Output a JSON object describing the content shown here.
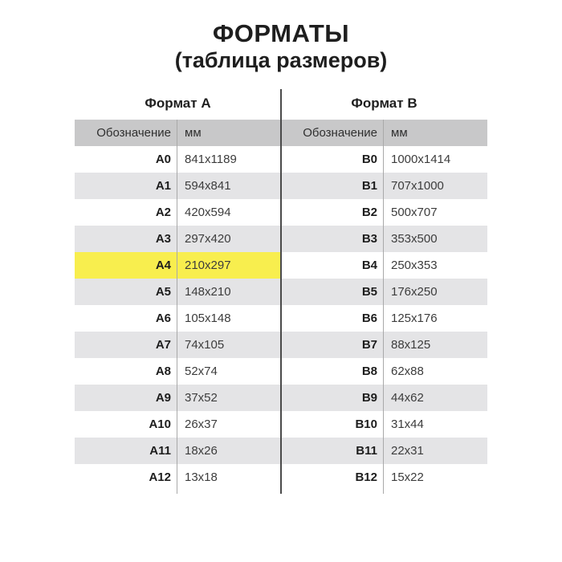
{
  "title": "ФОРМАТЫ",
  "subtitle": "(таблица размеров)",
  "colors": {
    "highlight_yellow": "#f8ee4e",
    "header_band_gray": "#c8c8c9",
    "row_alt_gray": "#e4e4e6",
    "divider_dark": "#4a4a4a",
    "text_black": "#1e1e1e"
  },
  "highlighted_row": "A4",
  "tables": [
    {
      "heading": "Формат А",
      "columns": [
        "Обозначение",
        "мм"
      ],
      "rows": [
        {
          "label": "A0",
          "size": "841x1189",
          "highlight": false
        },
        {
          "label": "A1",
          "size": "594x841",
          "highlight": false
        },
        {
          "label": "A2",
          "size": "420x594",
          "highlight": false
        },
        {
          "label": "A3",
          "size": "297x420",
          "highlight": false
        },
        {
          "label": "A4",
          "size": "210x297",
          "highlight": true
        },
        {
          "label": "A5",
          "size": "148x210",
          "highlight": false
        },
        {
          "label": "A6",
          "size": "105x148",
          "highlight": false
        },
        {
          "label": "A7",
          "size": "74x105",
          "highlight": false
        },
        {
          "label": "A8",
          "size": "52x74",
          "highlight": false
        },
        {
          "label": "A9",
          "size": "37x52",
          "highlight": false
        },
        {
          "label": "A10",
          "size": "26x37",
          "highlight": false
        },
        {
          "label": "A11",
          "size": "18x26",
          "highlight": false
        },
        {
          "label": "A12",
          "size": "13x18",
          "highlight": false
        }
      ]
    },
    {
      "heading": "Формат В",
      "columns": [
        "Обозначение",
        "мм"
      ],
      "rows": [
        {
          "label": "B0",
          "size": "1000x1414",
          "highlight": false
        },
        {
          "label": "B1",
          "size": "707x1000",
          "highlight": false
        },
        {
          "label": "B2",
          "size": "500x707",
          "highlight": false
        },
        {
          "label": "B3",
          "size": "353x500",
          "highlight": false
        },
        {
          "label": "B4",
          "size": "250x353",
          "highlight": false
        },
        {
          "label": "B5",
          "size": "176x250",
          "highlight": false
        },
        {
          "label": "B6",
          "size": "125x176",
          "highlight": false
        },
        {
          "label": "B7",
          "size": "88x125",
          "highlight": false
        },
        {
          "label": "B8",
          "size": "62x88",
          "highlight": false
        },
        {
          "label": "B9",
          "size": "44x62",
          "highlight": false
        },
        {
          "label": "B10",
          "size": "31x44",
          "highlight": false
        },
        {
          "label": "B11",
          "size": "22x31",
          "highlight": false
        },
        {
          "label": "B12",
          "size": "15x22",
          "highlight": false
        }
      ]
    }
  ],
  "chart_data": [
    {
      "type": "table",
      "title": "Формат А",
      "columns": [
        "Обозначение",
        "мм"
      ],
      "rows": [
        [
          "A0",
          "841x1189"
        ],
        [
          "A1",
          "594x841"
        ],
        [
          "A2",
          "420x594"
        ],
        [
          "A3",
          "297x420"
        ],
        [
          "A4",
          "210x297"
        ],
        [
          "A5",
          "148x210"
        ],
        [
          "A6",
          "105x148"
        ],
        [
          "A7",
          "74x105"
        ],
        [
          "A8",
          "52x74"
        ],
        [
          "A9",
          "37x52"
        ],
        [
          "A10",
          "26x37"
        ],
        [
          "A11",
          "18x26"
        ],
        [
          "A12",
          "13x18"
        ]
      ],
      "highlighted_row": "A4"
    },
    {
      "type": "table",
      "title": "Формат В",
      "columns": [
        "Обозначение",
        "мм"
      ],
      "rows": [
        [
          "B0",
          "1000x1414"
        ],
        [
          "B1",
          "707x1000"
        ],
        [
          "B2",
          "500x707"
        ],
        [
          "B3",
          "353x500"
        ],
        [
          "B4",
          "250x353"
        ],
        [
          "B5",
          "176x250"
        ],
        [
          "B6",
          "125x176"
        ],
        [
          "B7",
          "88x125"
        ],
        [
          "B8",
          "62x88"
        ],
        [
          "B9",
          "44x62"
        ],
        [
          "B10",
          "31x44"
        ],
        [
          "B11",
          "22x31"
        ],
        [
          "B12",
          "15x22"
        ]
      ],
      "highlighted_row": null
    }
  ]
}
